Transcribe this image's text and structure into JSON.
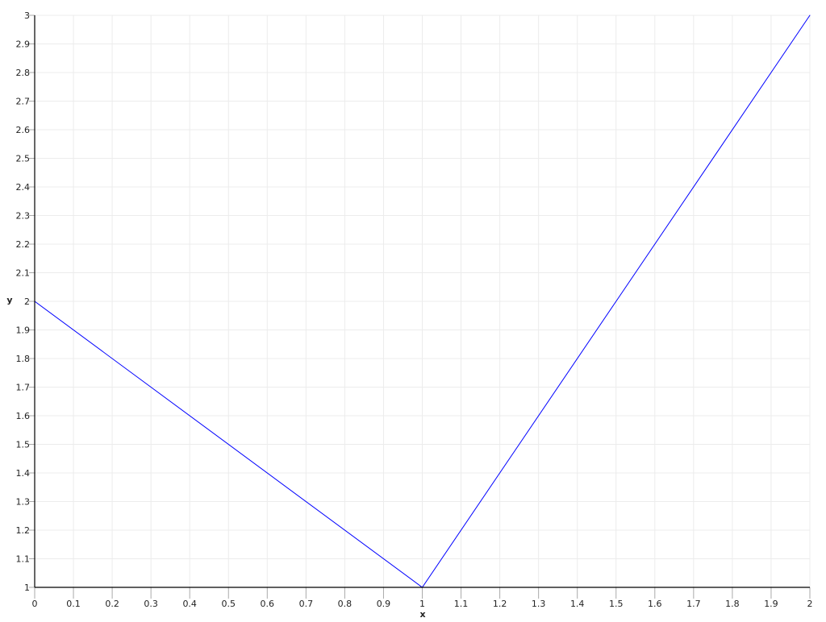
{
  "chart_data": {
    "type": "line",
    "title": "",
    "xlabel": "x",
    "ylabel": "y",
    "xlim": [
      0,
      2
    ],
    "ylim": [
      1,
      3
    ],
    "xticks": [
      "0",
      "0.1",
      "0.2",
      "0.3",
      "0.4",
      "0.5",
      "0.6",
      "0.7",
      "0.8",
      "0.9",
      "1",
      "1.1",
      "1.2",
      "1.3",
      "1.4",
      "1.5",
      "1.6",
      "1.7",
      "1.8",
      "1.9",
      "2"
    ],
    "yticks": [
      "1",
      "1.1",
      "1.2",
      "1.3",
      "1.4",
      "1.5",
      "1.6",
      "1.7",
      "1.8",
      "1.9",
      "2",
      "2.1",
      "2.2",
      "2.3",
      "2.4",
      "2.5",
      "2.6",
      "2.7",
      "2.8",
      "2.9",
      "3"
    ],
    "grid": true,
    "series": [
      {
        "x": [
          0,
          1,
          2
        ],
        "y": [
          2,
          1,
          3
        ],
        "color": "#0000ff"
      }
    ]
  }
}
